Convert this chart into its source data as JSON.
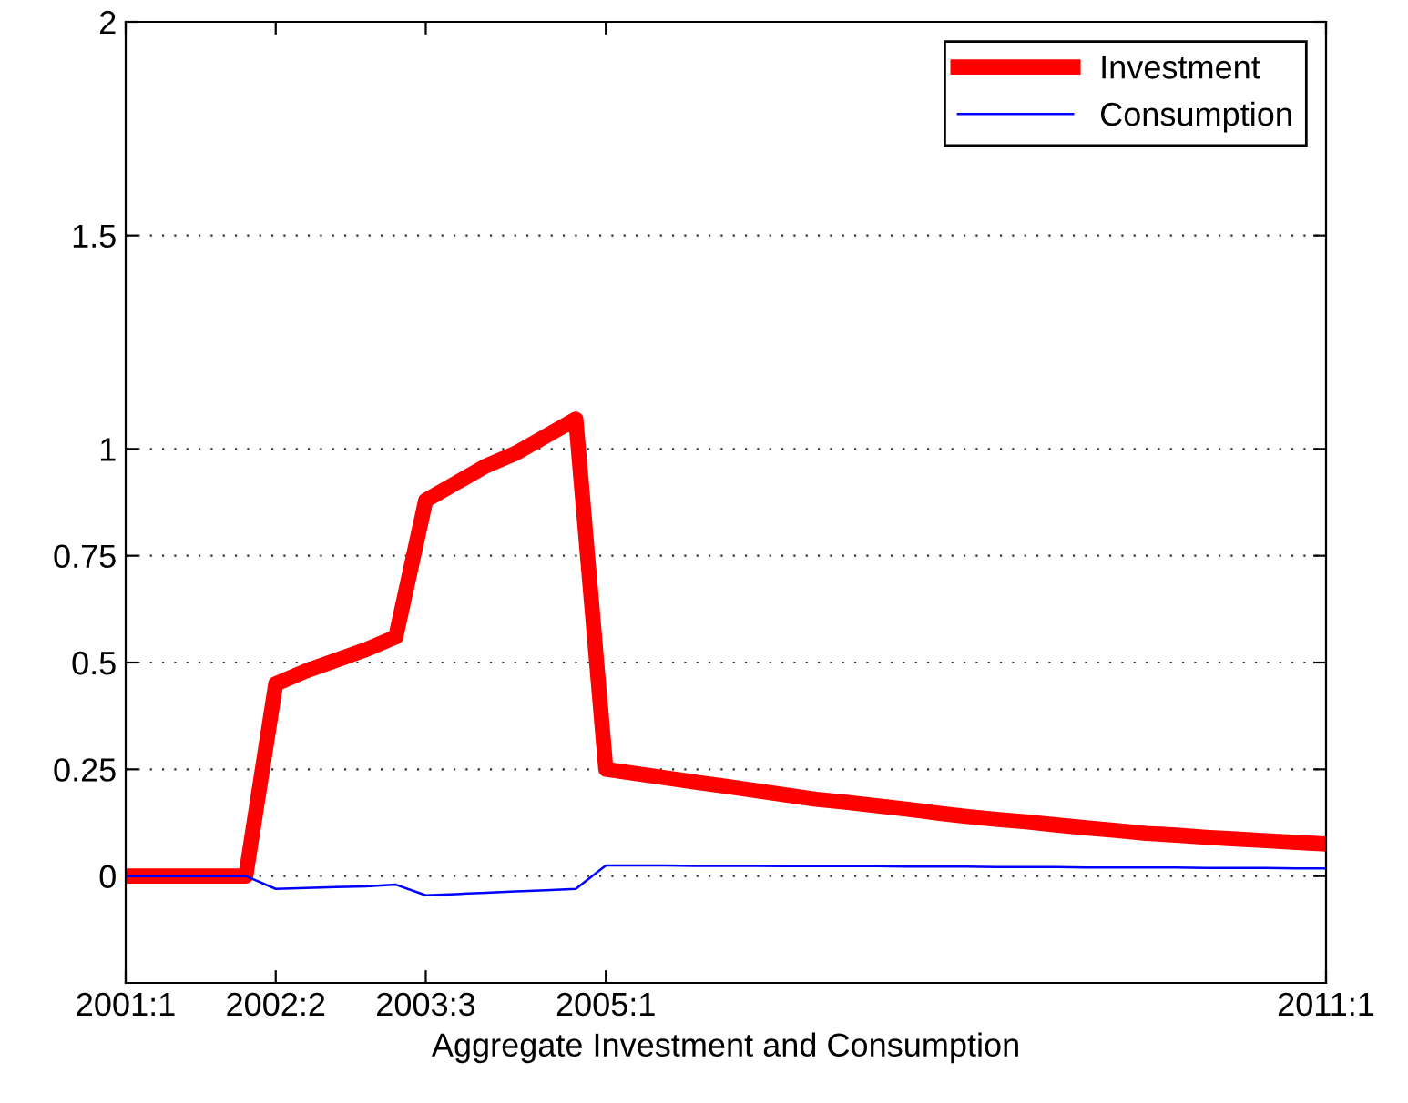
{
  "chart_data": {
    "type": "line",
    "xlabel": "Aggregate Investment and Consumption",
    "categories": [
      "2001:1",
      null,
      null,
      null,
      null,
      "2002:2",
      null,
      null,
      null,
      null,
      "2003:3",
      null,
      null,
      null,
      null,
      null,
      "2005:1",
      null,
      null,
      null,
      null,
      null,
      null,
      null,
      null,
      null,
      null,
      null,
      null,
      null,
      null,
      null,
      null,
      null,
      null,
      null,
      null,
      null,
      null,
      null,
      "2011:1"
    ],
    "ylim": [
      -0.25,
      2
    ],
    "yticks": [
      0,
      0.25,
      0.5,
      0.75,
      1,
      1.5,
      2
    ],
    "grid": "y",
    "legend": "top right",
    "line_style": "solid",
    "marker": "none",
    "series": [
      {
        "name": "Investment",
        "color": "#ff0000",
        "values": [
          0,
          0,
          0,
          0,
          0,
          0.45,
          0.48,
          0.505,
          0.53,
          0.56,
          0.88,
          0.92,
          0.96,
          0.99,
          1.03,
          1.07,
          0.25,
          0.24,
          0.23,
          0.22,
          0.21,
          0.2,
          0.19,
          0.18,
          0.173,
          0.165,
          0.157,
          0.148,
          0.14,
          0.133,
          0.127,
          0.12,
          0.113,
          0.107,
          0.1,
          0.096,
          0.091,
          0.087,
          0.083,
          0.079,
          0.075
        ]
      },
      {
        "name": "Consumption",
        "color": "#0000ff",
        "values": [
          0,
          0,
          0,
          0,
          0,
          -0.03,
          -0.028,
          -0.026,
          -0.024,
          -0.02,
          -0.045,
          -0.042,
          -0.039,
          -0.036,
          -0.033,
          -0.03,
          0.025,
          0.025,
          0.025,
          0.024,
          0.024,
          0.024,
          0.023,
          0.023,
          0.023,
          0.023,
          0.022,
          0.022,
          0.022,
          0.021,
          0.021,
          0.021,
          0.02,
          0.02,
          0.02,
          0.02,
          0.019,
          0.019,
          0.019,
          0.018,
          0.018
        ]
      }
    ]
  }
}
